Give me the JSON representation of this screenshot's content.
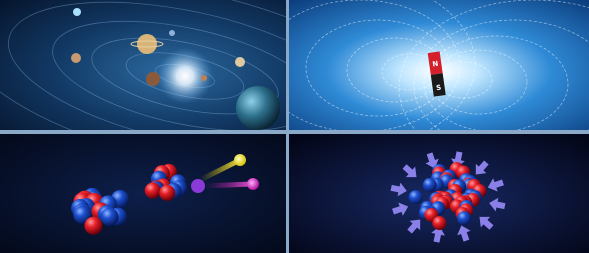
{
  "magnet": {
    "north": "N",
    "south": "S"
  }
}
